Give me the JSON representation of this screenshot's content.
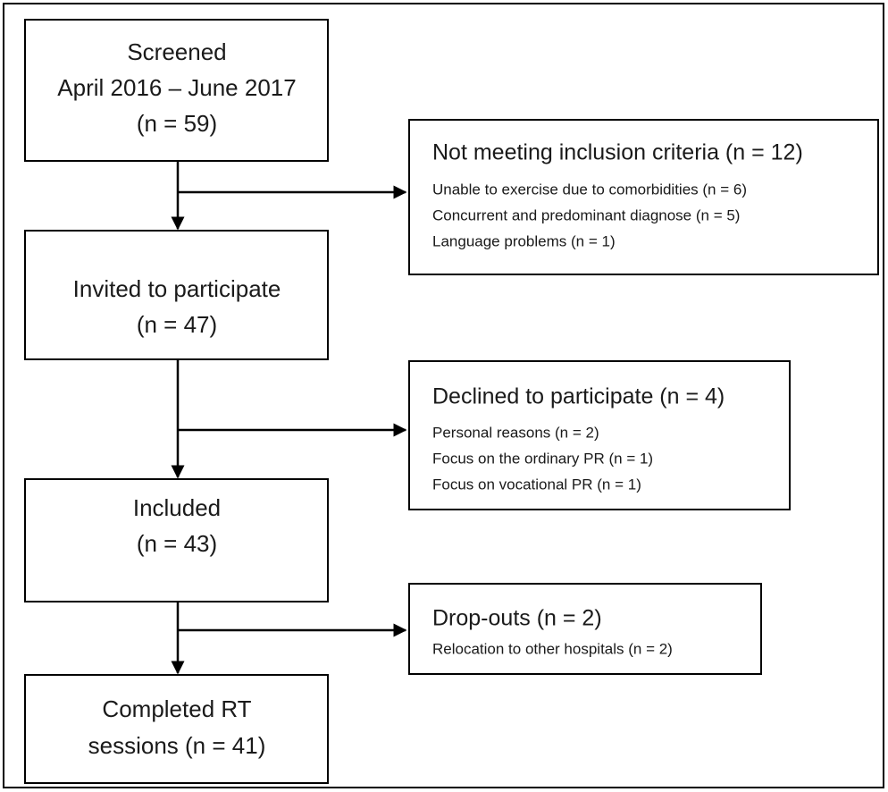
{
  "main_boxes": [
    {
      "lines": [
        "Screened",
        "April 2016 – June 2017",
        "(n = 59)"
      ]
    },
    {
      "lines": [
        "Invited to participate",
        "(n = 47)"
      ]
    },
    {
      "lines": [
        "Included",
        "(n = 43)"
      ]
    },
    {
      "lines": [
        "Completed RT",
        "sessions (n = 41)"
      ]
    }
  ],
  "side_boxes": [
    {
      "title": "Not meeting inclusion criteria (n = 12)",
      "items": [
        "Unable to exercise due to comorbidities (n = 6)",
        "Concurrent and predominant diagnose (n = 5)",
        "Language problems (n = 1)"
      ]
    },
    {
      "title": "Declined to participate (n = 4)",
      "items": [
        "Personal reasons (n = 2)",
        "Focus on the ordinary PR (n = 1)",
        "Focus on vocational PR (n = 1)"
      ]
    },
    {
      "title": "Drop-outs (n = 2)",
      "items": [
        "Relocation to other hospitals (n = 2)"
      ]
    }
  ]
}
